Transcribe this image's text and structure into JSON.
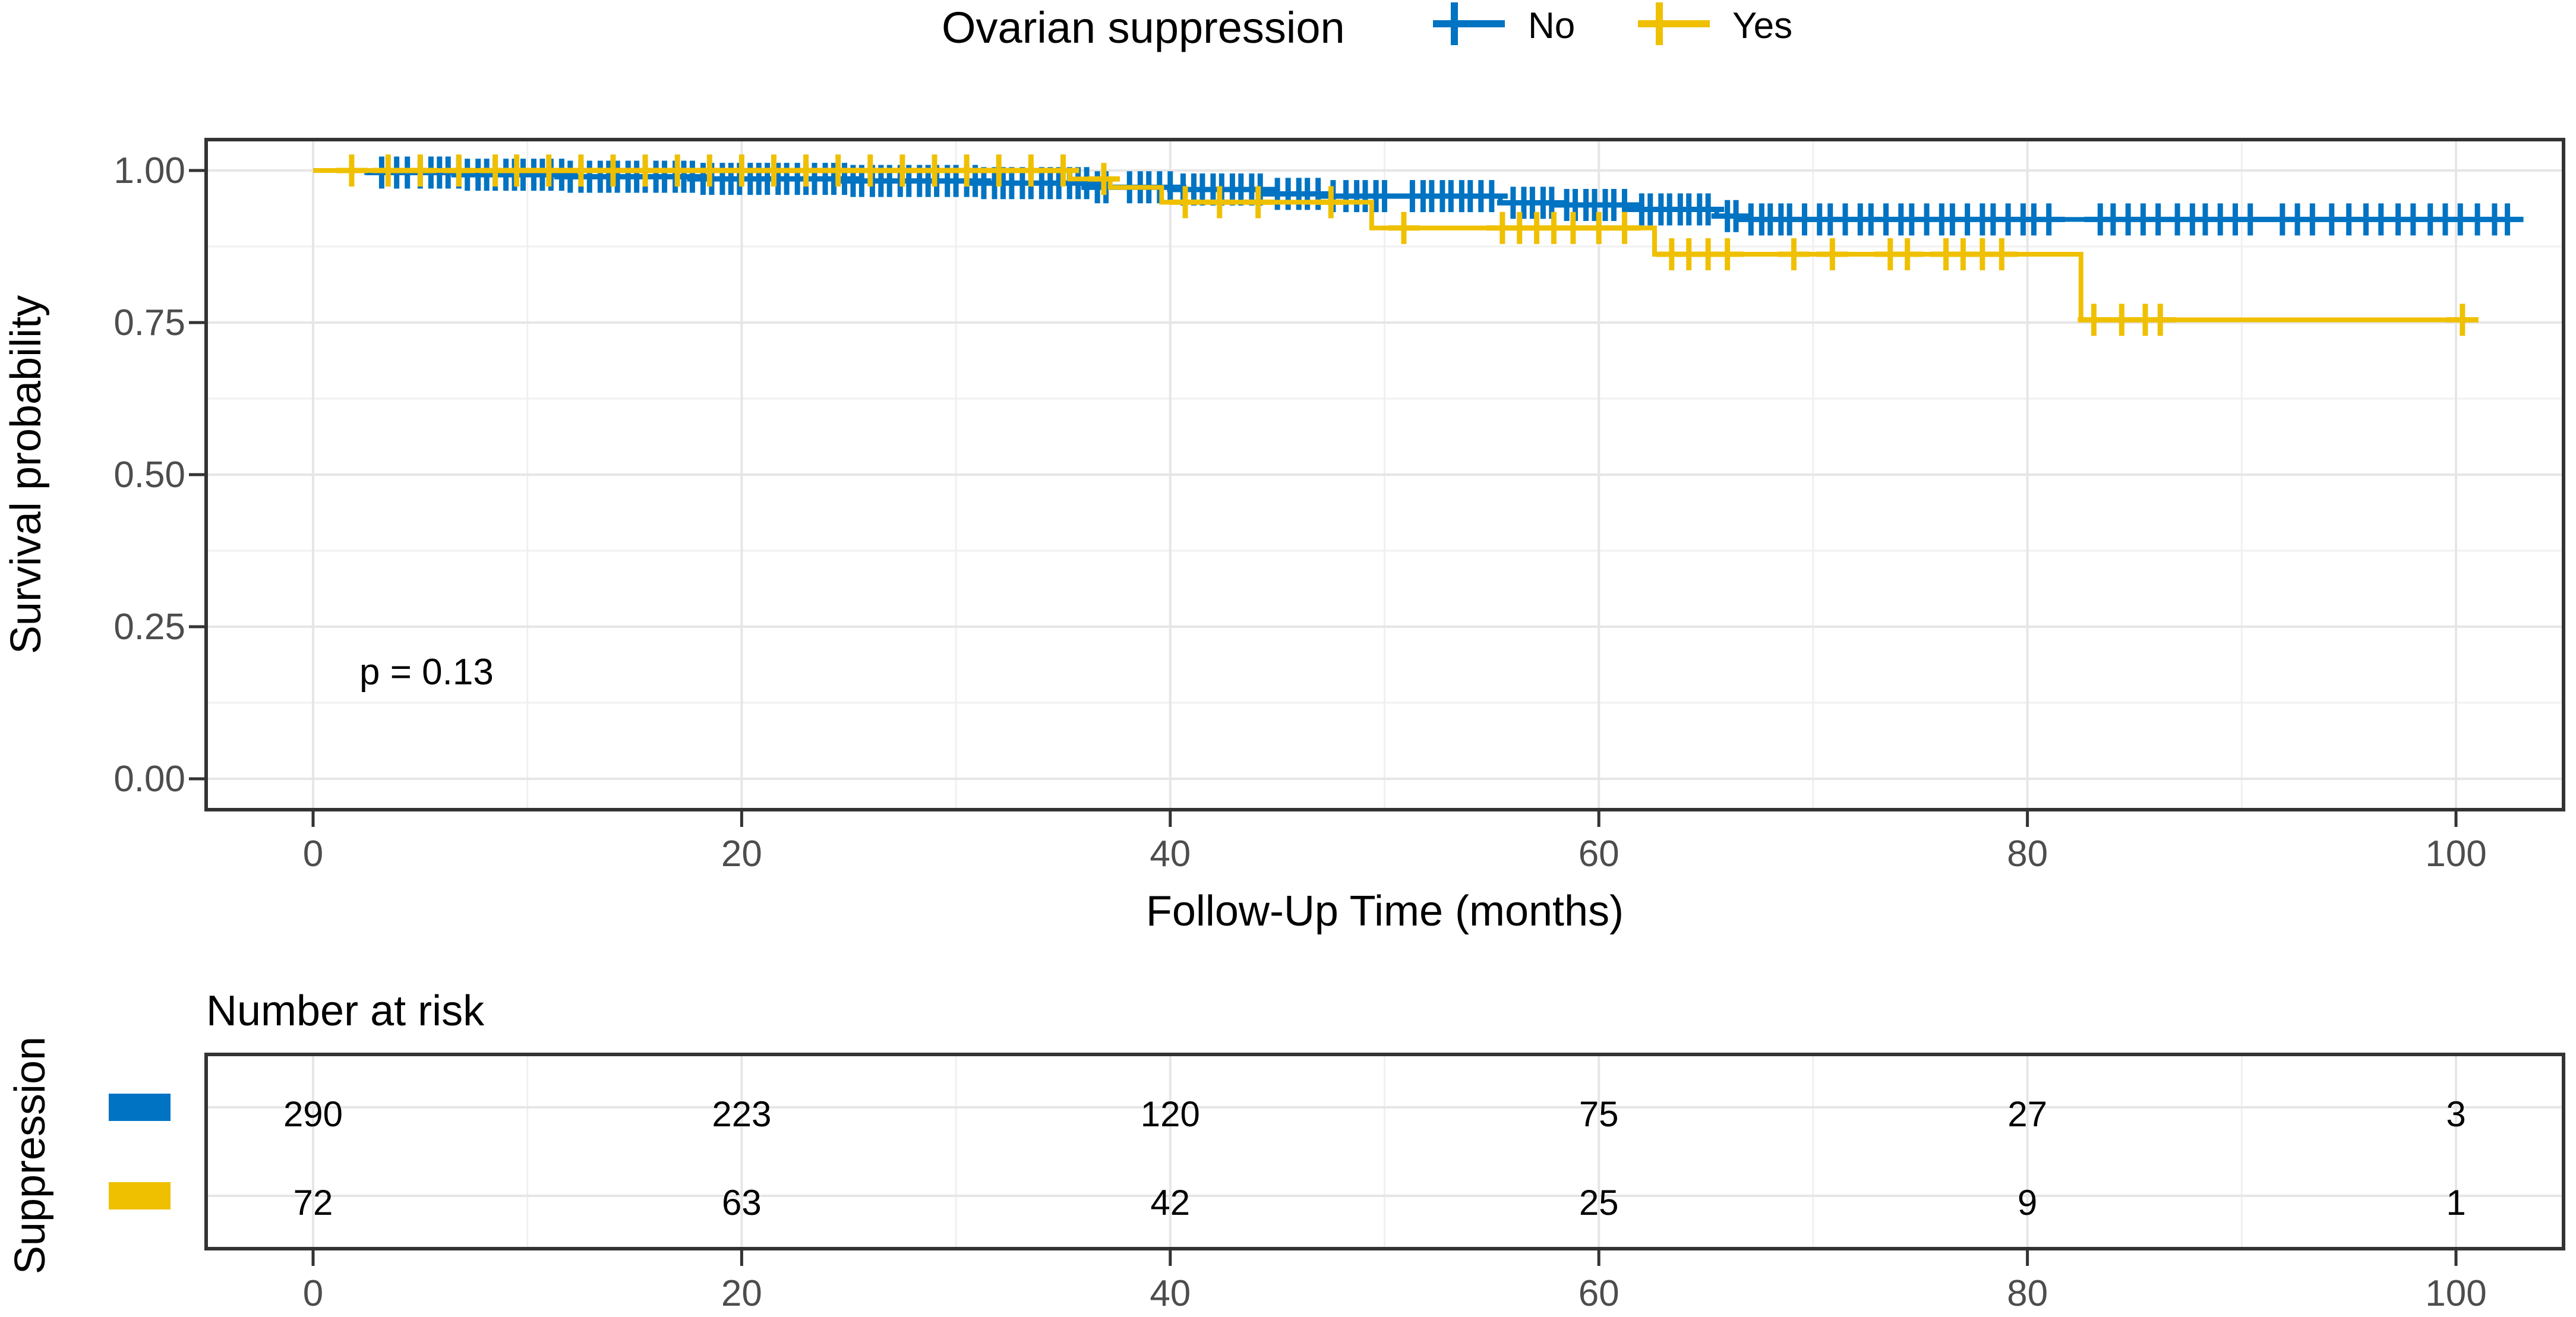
{
  "legend": {
    "title": "Ovarian suppression",
    "entries": [
      {
        "label": "No",
        "color": "#0073C2"
      },
      {
        "label": "Yes",
        "color": "#EFC000"
      }
    ]
  },
  "y_axis": {
    "title": "Survival probability",
    "tick_labels": [
      "1.00",
      "0.75",
      "0.50",
      "0.25",
      "0.00"
    ],
    "tick_values": [
      1.0,
      0.75,
      0.5,
      0.25,
      0.0
    ],
    "minor_values": [
      0.875,
      0.625,
      0.375,
      0.125
    ]
  },
  "x_axis": {
    "title": "Follow-Up Time (months)",
    "tick_values": [
      0,
      20,
      40,
      60,
      80,
      100
    ],
    "minor_values": [
      10,
      30,
      50,
      70,
      90
    ],
    "range": [
      0,
      105
    ]
  },
  "annotation": {
    "pvalue": "p = 0.13"
  },
  "chart_data": {
    "type": "line",
    "subtype": "kaplan-meier-step",
    "title": "Ovarian suppression",
    "xlabel": "Follow-Up Time (months)",
    "ylabel": "Survival probability",
    "xlim": [
      0,
      105
    ],
    "ylim": [
      0,
      1.05
    ],
    "grid": true,
    "legend_position": "top",
    "pvalue_text": "p = 0.13",
    "series": [
      {
        "name": "No",
        "color": "#0073C2",
        "end_time": 102.5,
        "steps": [
          [
            0,
            1.0
          ],
          [
            2.5,
            0.9966
          ],
          [
            7,
            0.9931
          ],
          [
            12,
            0.9897
          ],
          [
            18,
            0.9862
          ],
          [
            25,
            0.9828
          ],
          [
            31,
            0.9793
          ],
          [
            36.5,
            0.9724
          ],
          [
            40.2,
            0.9688
          ],
          [
            44.8,
            0.9615
          ],
          [
            47.3,
            0.9579
          ],
          [
            55.4,
            0.9469
          ],
          [
            58.2,
            0.9433
          ],
          [
            61.5,
            0.936
          ],
          [
            65.5,
            0.925
          ],
          [
            66.5,
            0.9195
          ]
        ],
        "censor_times": [
          3.2,
          3.9,
          4.4,
          5.0,
          5.5,
          5.9,
          6.3,
          6.8,
          7.2,
          7.7,
          8.1,
          8.5,
          9.0,
          9.4,
          9.8,
          10.3,
          10.7,
          11.1,
          11.6,
          12.0,
          12.5,
          12.9,
          13.4,
          13.8,
          14.2,
          14.7,
          15.1,
          15.5,
          16.0,
          16.4,
          16.9,
          17.3,
          17.7,
          18.2,
          18.6,
          19.1,
          19.5,
          19.9,
          20.4,
          20.8,
          21.2,
          21.7,
          22.1,
          22.6,
          23.0,
          23.4,
          23.9,
          24.3,
          24.8,
          25.2,
          25.6,
          26.1,
          26.5,
          26.9,
          27.4,
          27.8,
          28.3,
          28.7,
          29.1,
          29.6,
          30.0,
          30.5,
          30.9,
          31.3,
          31.8,
          32.2,
          32.6,
          33.1,
          33.5,
          34.0,
          34.4,
          34.8,
          35.3,
          35.7,
          36.1,
          36.6,
          37.0,
          38.1,
          38.6,
          39.0,
          39.5,
          40.0,
          40.6,
          41.1,
          41.5,
          42.0,
          42.4,
          42.9,
          43.3,
          43.8,
          44.2,
          45.0,
          45.5,
          46.0,
          46.4,
          46.9,
          47.6,
          48.2,
          48.7,
          49.1,
          49.6,
          50.0,
          51.3,
          51.8,
          52.2,
          52.7,
          53.1,
          53.6,
          54.0,
          54.5,
          55.0,
          56.0,
          56.5,
          56.9,
          57.4,
          57.8,
          58.5,
          58.9,
          59.4,
          59.8,
          60.3,
          60.7,
          61.2,
          62.0,
          62.4,
          62.9,
          63.3,
          63.8,
          64.2,
          64.7,
          65.1,
          66.0,
          66.4,
          67.1,
          67.6,
          68.0,
          68.5,
          68.9,
          69.6,
          70.3,
          70.8,
          71.5,
          72.2,
          72.7,
          73.4,
          74.1,
          74.6,
          75.3,
          76.0,
          76.5,
          77.2,
          77.9,
          78.4,
          79.1,
          79.8,
          80.3,
          81.0,
          83.4,
          84.0,
          84.7,
          85.4,
          86.1,
          87.0,
          87.7,
          88.3,
          89.0,
          89.7,
          90.4,
          91.9,
          92.6,
          93.3,
          94.2,
          95.0,
          95.8,
          96.5,
          97.3,
          98.0,
          98.8,
          99.5,
          100.2,
          101.0,
          101.8,
          102.4
        ]
      },
      {
        "name": "Yes",
        "color": "#EFC000",
        "end_time": 100.7,
        "steps": [
          [
            0,
            1.0
          ],
          [
            35.3,
            0.9861
          ],
          [
            37.2,
            0.9722
          ],
          [
            39.6,
            0.9479
          ],
          [
            49.4,
            0.9055
          ],
          [
            62.6,
            0.8623
          ],
          [
            82.5,
            0.7545
          ]
        ],
        "censor_times": [
          1.8,
          3.5,
          5.0,
          6.8,
          8.5,
          9.5,
          11.0,
          12.5,
          14.0,
          15.5,
          17.0,
          18.5,
          20.0,
          21.5,
          23.0,
          24.5,
          26.0,
          27.5,
          29.0,
          30.5,
          32.0,
          33.5,
          35.0,
          36.9,
          40.7,
          42.3,
          44.1,
          47.5,
          50.9,
          55.5,
          56.3,
          57.1,
          57.9,
          58.8,
          60.0,
          61.2,
          63.4,
          64.2,
          65.1,
          66.0,
          69.1,
          70.9,
          73.6,
          74.4,
          76.2,
          77.0,
          77.9,
          78.8,
          83.1,
          84.4,
          85.5,
          86.2,
          100.3
        ]
      }
    ]
  },
  "risk_table": {
    "title": "Number at risk",
    "axis_label": "Suppression",
    "times": [
      0,
      20,
      40,
      60,
      80,
      100
    ],
    "rows": [
      {
        "name": "No",
        "color": "#0073C2",
        "counts": [
          290,
          223,
          120,
          75,
          27,
          3
        ]
      },
      {
        "name": "Yes",
        "color": "#EFC000",
        "counts": [
          72,
          63,
          42,
          25,
          9,
          1
        ]
      }
    ]
  }
}
